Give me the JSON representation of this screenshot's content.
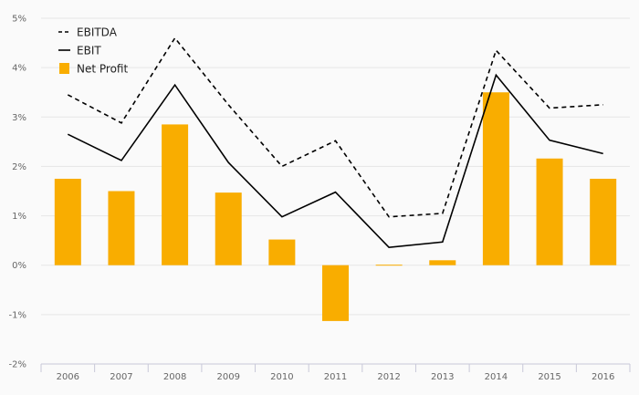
{
  "chart_data": {
    "type": "bar",
    "categories": [
      "2006",
      "2007",
      "2008",
      "2009",
      "2010",
      "2011",
      "2012",
      "2013",
      "2014",
      "2015",
      "2016"
    ],
    "series": [
      {
        "name": "EBITDA",
        "type": "line",
        "style": "dashed",
        "color": "#000000",
        "values": [
          3.45,
          2.88,
          4.6,
          3.25,
          2.0,
          2.52,
          0.98,
          1.05,
          4.35,
          3.18,
          3.25
        ]
      },
      {
        "name": "EBIT",
        "type": "line",
        "style": "solid",
        "color": "#000000",
        "values": [
          2.65,
          2.12,
          3.65,
          2.08,
          0.98,
          1.48,
          0.36,
          0.47,
          3.85,
          2.53,
          2.26
        ]
      },
      {
        "name": "Net Profit",
        "type": "bar",
        "color": "#f9ad00",
        "values": [
          1.75,
          1.5,
          2.85,
          1.47,
          0.52,
          -1.13,
          0.01,
          0.1,
          3.5,
          2.16,
          1.75
        ]
      }
    ],
    "y_ticks": [
      "5%",
      "4%",
      "3%",
      "2%",
      "1%",
      "0%",
      "-1%",
      "-2%"
    ],
    "ylim": [
      -2,
      5
    ],
    "grid": true,
    "legend_position": "top-left"
  }
}
